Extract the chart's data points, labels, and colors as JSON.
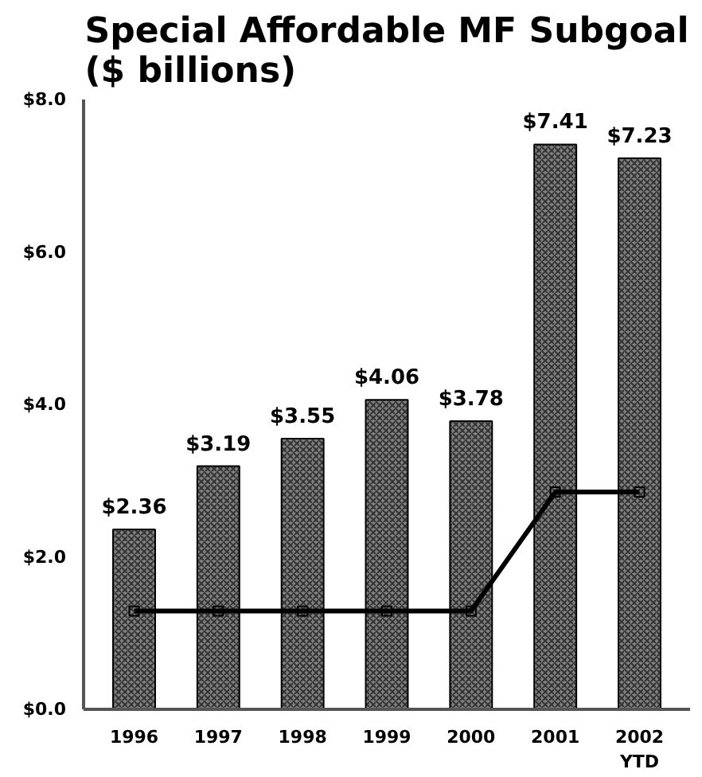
{
  "chart_data": {
    "type": "bar",
    "title": "Special Affordable MF Subgoal\n($ billions)",
    "categories": [
      "1996",
      "1997",
      "1998",
      "1999",
      "2000",
      "2001",
      "2002\nYTD"
    ],
    "series": [
      {
        "color": "#808080",
        "values": [
          2.36,
          3.19,
          3.55,
          4.06,
          3.78,
          7.41,
          7.23
        ],
        "value_labels": [
          "$2.36",
          "$3.19",
          "$3.55",
          "$4.06",
          "$3.78",
          "$7.41",
          "$7.23"
        ]
      },
      {
        "type": "line",
        "color": "#000000",
        "values": [
          1.29,
          1.29,
          1.29,
          1.29,
          1.29,
          2.85,
          2.85
        ],
        "marker": "square",
        "line_style": "solid"
      }
    ],
    "ylim": [
      0,
      8
    ],
    "yticks": [
      {
        "value": 0,
        "label": "$0.0"
      },
      {
        "value": 2,
        "label": "$2.0"
      },
      {
        "value": 4,
        "label": "$4.0"
      },
      {
        "value": 6,
        "label": "$6.0"
      },
      {
        "value": 8,
        "label": "$8.0"
      }
    ],
    "grid": false
  }
}
